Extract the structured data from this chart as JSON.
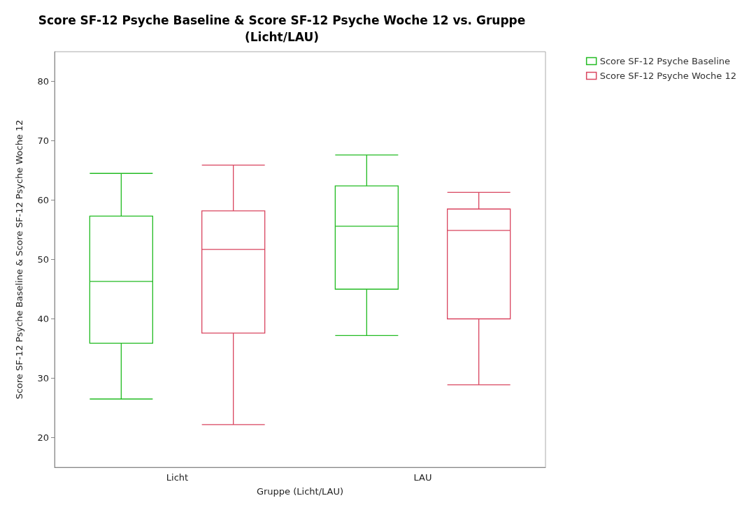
{
  "chart_data": {
    "type": "box",
    "title": "Score SF-12 Psyche Baseline & Score SF-12 Psyche Woche 12 vs. Gruppe\n(Licht/LAU)",
    "xlabel": "Gruppe (Licht/LAU)",
    "ylabel": "Score SF-12 Psyche Baseline & Score SF-12 Psyche Woche 12",
    "categories": [
      "Licht",
      "LAU"
    ],
    "series": [
      {
        "name": "Score SF-12 Psyche Baseline",
        "color": "#22bb22",
        "boxes": [
          {
            "low": 26.5,
            "q1": 35.9,
            "median": 46.3,
            "q3": 57.3,
            "high": 64.5
          },
          {
            "low": 37.2,
            "q1": 45.0,
            "median": 55.6,
            "q3": 62.4,
            "high": 67.6
          }
        ]
      },
      {
        "name": "Score SF-12 Psyche Woche 12",
        "color": "#d9455f",
        "boxes": [
          {
            "low": 22.2,
            "q1": 37.6,
            "median": 51.7,
            "q3": 58.2,
            "high": 65.9
          },
          {
            "low": 28.9,
            "q1": 40.0,
            "median": 54.9,
            "q3": 58.5,
            "high": 61.3
          }
        ]
      }
    ],
    "ylim": [
      15,
      85
    ],
    "yticks": [
      20,
      30,
      40,
      50,
      60,
      70,
      80
    ],
    "grid": false,
    "legend": "top right"
  }
}
